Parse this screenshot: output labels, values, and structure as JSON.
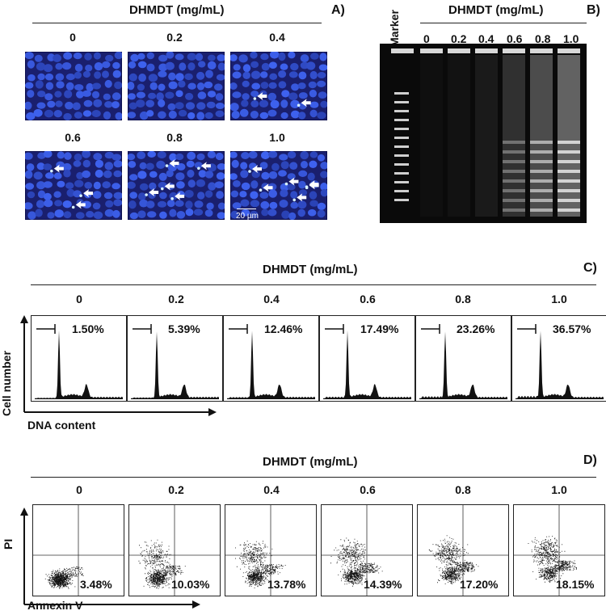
{
  "panel_a": {
    "title": "DHMDT (mg/mL)",
    "letter": "A)",
    "concentrations": [
      "0",
      "0.2",
      "0.4",
      "0.6",
      "0.8",
      "1.0"
    ],
    "scale_bar": "20 µm"
  },
  "panel_b": {
    "title": "DHMDT (mg/mL)",
    "letter": "B)",
    "marker_label": "Marker",
    "lanes": [
      "0",
      "0.2",
      "0.4",
      "0.6",
      "0.8",
      "1.0"
    ]
  },
  "panel_c": {
    "title": "DHMDT (mg/mL)",
    "letter": "C)",
    "concentrations": [
      "0",
      "0.2",
      "0.4",
      "0.6",
      "0.8",
      "1.0"
    ],
    "percentages": [
      "1.50%",
      "5.39%",
      "12.46%",
      "17.49%",
      "23.26%",
      "36.57%"
    ],
    "y_label": "Cell number",
    "x_label": "DNA content"
  },
  "panel_d": {
    "title": "DHMDT (mg/mL)",
    "letter": "D)",
    "concentrations": [
      "0",
      "0.2",
      "0.4",
      "0.6",
      "0.8",
      "1.0"
    ],
    "percentages": [
      "3.48%",
      "10.03%",
      "13.78%",
      "14.39%",
      "17.20%",
      "18.15%"
    ],
    "y_label": "PI",
    "x_label": "Annexin V"
  }
}
